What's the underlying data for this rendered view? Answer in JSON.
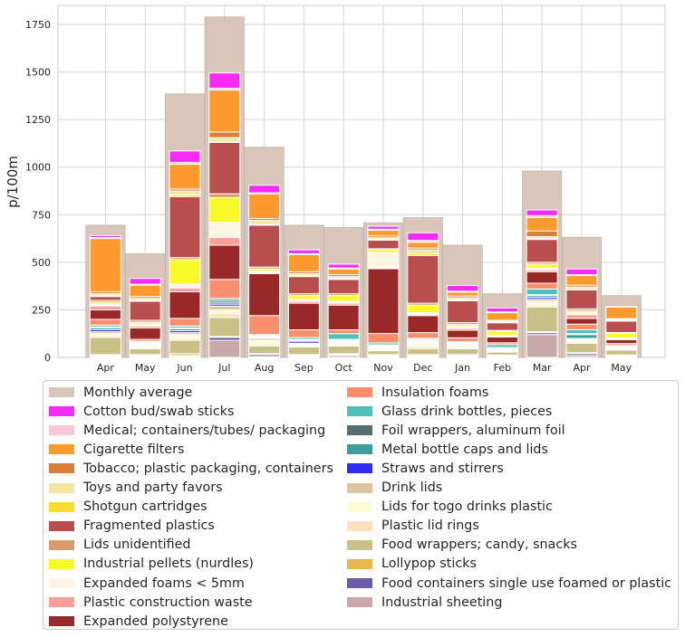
{
  "chart_data": {
    "type": "bar",
    "title": "",
    "xlabel": "",
    "ylabel": "p/100m",
    "ylim": [
      0,
      1850
    ],
    "yticks": [
      0,
      250,
      500,
      750,
      1000,
      1250,
      1500,
      1750
    ],
    "grid": true,
    "legend_position": "below",
    "categories": [
      "Apr",
      "May",
      "Jun",
      "Jul",
      "Aug",
      "Sep",
      "Oct",
      "Nov",
      "Dec",
      "Jan",
      "Feb",
      "Mar",
      "Apr",
      "May"
    ],
    "average": {
      "name": "Monthly average",
      "color": "#d9c6bb",
      "values": [
        695,
        545,
        1385,
        1790,
        1105,
        695,
        683,
        708,
        735,
        590,
        335,
        980,
        632,
        325
      ]
    },
    "series": [
      {
        "name": "Industrial sheeting",
        "color": "#c8a8a8",
        "values": [
          5,
          5,
          5,
          90,
          5,
          5,
          10,
          5,
          5,
          5,
          5,
          120,
          10,
          5
        ]
      },
      {
        "name": "Food containers single use foamed or plastic",
        "color": "#6a5aa8",
        "values": [
          5,
          5,
          5,
          15,
          10,
          5,
          5,
          5,
          5,
          5,
          5,
          10,
          10,
          5
        ]
      },
      {
        "name": "Lollypop sticks",
        "color": "#e8b84a",
        "values": [
          5,
          5,
          10,
          5,
          5,
          5,
          5,
          5,
          5,
          5,
          3,
          5,
          5,
          3
        ]
      },
      {
        "name": "Food wrappers; candy, snacks",
        "color": "#c8c084",
        "values": [
          90,
          30,
          70,
          100,
          40,
          40,
          40,
          20,
          30,
          30,
          15,
          130,
          50,
          25
        ]
      },
      {
        "name": "Plastic lid rings",
        "color": "#fde0c0",
        "values": [
          10,
          5,
          10,
          20,
          10,
          5,
          5,
          5,
          10,
          5,
          5,
          10,
          5,
          5
        ]
      },
      {
        "name": "Lids for togo drinks plastic",
        "color": "#fffad6",
        "values": [
          10,
          10,
          20,
          20,
          20,
          10,
          10,
          10,
          20,
          10,
          5,
          20,
          10,
          5
        ]
      },
      {
        "name": "Drink lids",
        "color": "#dcc4a0",
        "values": [
          10,
          5,
          10,
          20,
          10,
          5,
          5,
          5,
          5,
          5,
          5,
          10,
          5,
          3
        ]
      },
      {
        "name": "Straws and stirrers",
        "color": "#2e2ef2",
        "values": [
          10,
          5,
          10,
          10,
          5,
          10,
          5,
          3,
          5,
          5,
          3,
          10,
          5,
          3
        ]
      },
      {
        "name": "Metal bottle caps and lids",
        "color": "#3a9e9a",
        "values": [
          10,
          5,
          10,
          10,
          5,
          5,
          5,
          5,
          5,
          5,
          3,
          10,
          20,
          3
        ]
      },
      {
        "name": "Foil wrappers, aluminum foil",
        "color": "#556e6e",
        "values": [
          5,
          5,
          5,
          10,
          5,
          5,
          5,
          3,
          5,
          3,
          3,
          5,
          5,
          3
        ]
      },
      {
        "name": "Glass drink bottles, pieces",
        "color": "#4ec0b8",
        "values": [
          10,
          5,
          10,
          10,
          5,
          10,
          30,
          10,
          5,
          5,
          15,
          30,
          20,
          3
        ]
      },
      {
        "name": "Insulation foams",
        "color": "#f98e6c",
        "values": [
          30,
          10,
          40,
          100,
          100,
          40,
          20,
          50,
          30,
          20,
          10,
          30,
          30,
          10
        ]
      },
      {
        "name": "Expanded polystyrene",
        "color": "#992828",
        "values": [
          50,
          60,
          140,
          180,
          220,
          140,
          130,
          340,
          90,
          40,
          30,
          60,
          30,
          20
        ]
      },
      {
        "name": "Plastic construction waste",
        "color": "#fa9f98",
        "values": [
          20,
          10,
          20,
          40,
          5,
          10,
          10,
          5,
          5,
          10,
          5,
          10,
          20,
          5
        ]
      },
      {
        "name": "Expanded foams < 5mm",
        "color": "#fff6e4",
        "values": [
          10,
          10,
          20,
          80,
          10,
          10,
          10,
          80,
          10,
          10,
          5,
          10,
          10,
          5
        ]
      },
      {
        "name": "Industrial pellets (nurdles)",
        "color": "#fafa2a",
        "values": [
          10,
          10,
          130,
          130,
          10,
          20,
          30,
          15,
          40,
          10,
          20,
          20,
          10,
          25
        ]
      },
      {
        "name": "Lids unidentified",
        "color": "#d89c6a",
        "values": [
          10,
          10,
          10,
          20,
          10,
          10,
          10,
          5,
          10,
          10,
          5,
          10,
          10,
          3
        ]
      },
      {
        "name": "Fragmented plastics",
        "color": "#b84e4e",
        "values": [
          20,
          100,
          320,
          270,
          220,
          90,
          75,
          45,
          250,
          115,
          40,
          120,
          100,
          60
        ]
      },
      {
        "name": "Shotgun cartridges",
        "color": "#fade2e",
        "values": [
          5,
          5,
          10,
          5,
          5,
          5,
          5,
          3,
          10,
          5,
          3,
          5,
          5,
          3
        ]
      },
      {
        "name": "Toys and party favors",
        "color": "#f4e6a0",
        "values": [
          10,
          10,
          20,
          20,
          20,
          10,
          10,
          10,
          20,
          10,
          5,
          10,
          10,
          5
        ]
      },
      {
        "name": "Tobacco; plastic packaging, containers",
        "color": "#da7e3c",
        "values": [
          10,
          10,
          10,
          30,
          10,
          10,
          10,
          10,
          10,
          10,
          5,
          30,
          10,
          5
        ]
      },
      {
        "name": "Cigarette filters",
        "color": "#fc9a2e",
        "values": [
          280,
          60,
          130,
          220,
          130,
          90,
          30,
          30,
          30,
          20,
          40,
          70,
          50,
          60
        ]
      },
      {
        "name": "Medical; containers/tubes/ packaging",
        "color": "#f8c8d4",
        "values": [
          5,
          5,
          10,
          10,
          5,
          5,
          5,
          5,
          10,
          5,
          5,
          10,
          5,
          3
        ]
      },
      {
        "name": "Cotton bud/swab sticks",
        "color": "#f82af8",
        "values": [
          10,
          30,
          60,
          80,
          40,
          20,
          20,
          15,
          40,
          30,
          20,
          30,
          30,
          0
        ]
      }
    ]
  },
  "legend": {
    "items": [
      {
        "label": "Monthly average",
        "color": "#d9c6bb"
      },
      {
        "label": "Cotton bud/swab sticks",
        "color": "#f82af8"
      },
      {
        "label": "Medical; containers/tubes/ packaging",
        "color": "#f8c8d4"
      },
      {
        "label": "Cigarette filters",
        "color": "#fc9a2e"
      },
      {
        "label": "Tobacco; plastic packaging, containers",
        "color": "#da7e3c"
      },
      {
        "label": "Toys and party favors",
        "color": "#f4e6a0"
      },
      {
        "label": "Shotgun cartridges",
        "color": "#fade2e"
      },
      {
        "label": "Fragmented plastics",
        "color": "#b84e4e"
      },
      {
        "label": "Lids unidentified",
        "color": "#d89c6a"
      },
      {
        "label": "Industrial pellets (nurdles)",
        "color": "#fafa2a"
      },
      {
        "label": "Expanded foams < 5mm",
        "color": "#fff6e4"
      },
      {
        "label": "Plastic construction waste",
        "color": "#fa9f98"
      },
      {
        "label": "Expanded polystyrene",
        "color": "#992828"
      },
      {
        "label": "Insulation foams",
        "color": "#f98e6c"
      },
      {
        "label": "Glass drink bottles, pieces",
        "color": "#4ec0b8"
      },
      {
        "label": "Foil wrappers, aluminum foil",
        "color": "#556e6e"
      },
      {
        "label": "Metal bottle caps and lids",
        "color": "#3a9e9a"
      },
      {
        "label": "Straws and stirrers",
        "color": "#2e2ef2"
      },
      {
        "label": "Drink lids",
        "color": "#dcc4a0"
      },
      {
        "label": "Lids for togo drinks plastic",
        "color": "#fffad6"
      },
      {
        "label": "Plastic lid rings",
        "color": "#fde0c0"
      },
      {
        "label": "Food wrappers; candy, snacks",
        "color": "#c8c084"
      },
      {
        "label": "Lollypop sticks",
        "color": "#e8b84a"
      },
      {
        "label": "Food containers single use foamed or plastic",
        "color": "#6a5aa8"
      },
      {
        "label": "Industrial sheeting",
        "color": "#c8a8a8"
      }
    ]
  }
}
